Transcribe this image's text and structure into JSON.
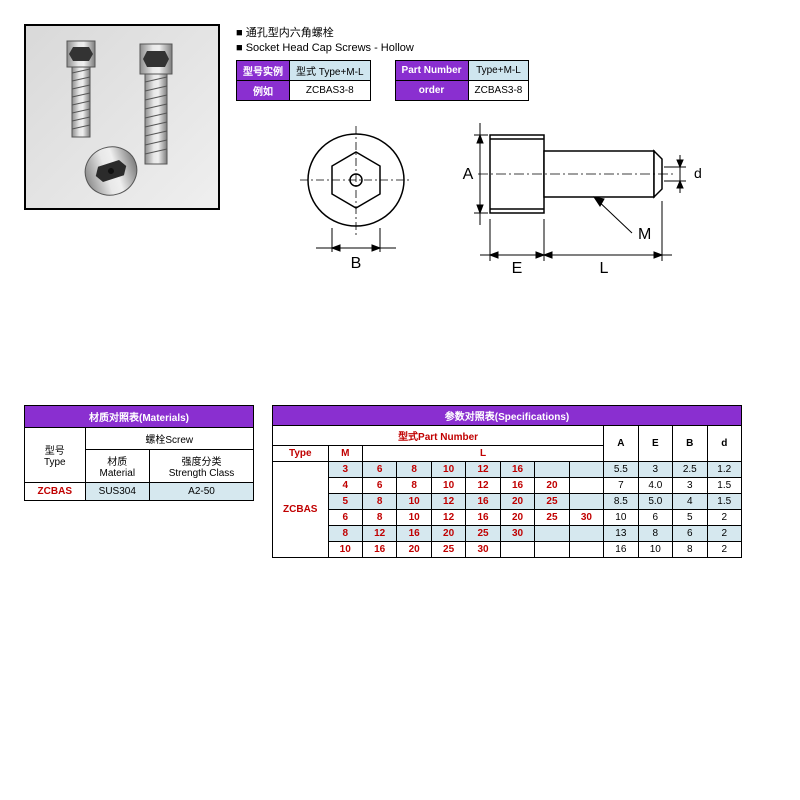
{
  "titles": {
    "cn": "■ 通孔型内六角螺栓",
    "en": "■ Socket Head Cap Screws - Hollow"
  },
  "miniLeft": {
    "h1": "型号实例",
    "v1": "型式  Type+M-L",
    "h2": "例如",
    "v2": "ZCBAS3-8"
  },
  "miniRight": {
    "h1": "Part Number",
    "v1": "Type+M-L",
    "h2": "order",
    "v2": "ZCBAS3-8"
  },
  "diagram": {
    "labels": {
      "A": "A",
      "B": "B",
      "E": "E",
      "L": "L",
      "M": "M",
      "d": "d"
    },
    "colors": {
      "line": "#000000",
      "fillLight": "#ffffff"
    }
  },
  "materials": {
    "title": "材质对照表(Materials)",
    "head": {
      "type_cn": "型号",
      "type_en": "Type",
      "screw": "螺栓Screw",
      "mat_cn": "材质",
      "mat_en": "Material",
      "str_cn": "强度分类",
      "str_en": "Strength Class"
    },
    "row": {
      "type": "ZCBAS",
      "material": "SUS304",
      "strength": "A2-50"
    }
  },
  "spec": {
    "title": "参数对照表(Specifications)",
    "pnTitle": "型式Part Number",
    "cols": {
      "type": "Type",
      "M": "M",
      "L": "L",
      "A": "A",
      "E": "E",
      "B": "B",
      "d": "d"
    },
    "typeVal": "ZCBAS",
    "lSlots": 7,
    "rows": [
      {
        "M": "3",
        "L": [
          "6",
          "8",
          "10",
          "12",
          "16"
        ],
        "A": "5.5",
        "E": "3",
        "B": "2.5",
        "d": "1.2",
        "shade": true
      },
      {
        "M": "4",
        "L": [
          "6",
          "8",
          "10",
          "12",
          "16",
          "20"
        ],
        "A": "7",
        "E": "4.0",
        "B": "3",
        "d": "1.5",
        "shade": false
      },
      {
        "M": "5",
        "L": [
          "8",
          "10",
          "12",
          "16",
          "20",
          "25"
        ],
        "A": "8.5",
        "E": "5.0",
        "B": "4",
        "d": "1.5",
        "shade": true
      },
      {
        "M": "6",
        "L": [
          "8",
          "10",
          "12",
          "16",
          "20",
          "25",
          "30"
        ],
        "A": "10",
        "E": "6",
        "B": "5",
        "d": "2",
        "shade": false
      },
      {
        "M": "8",
        "L": [
          "12",
          "16",
          "20",
          "25",
          "30"
        ],
        "A": "13",
        "E": "8",
        "B": "6",
        "d": "2",
        "shade": true
      },
      {
        "M": "10",
        "L": [
          "16",
          "20",
          "25",
          "30"
        ],
        "A": "16",
        "E": "10",
        "B": "8",
        "d": "2",
        "shade": false
      }
    ]
  }
}
